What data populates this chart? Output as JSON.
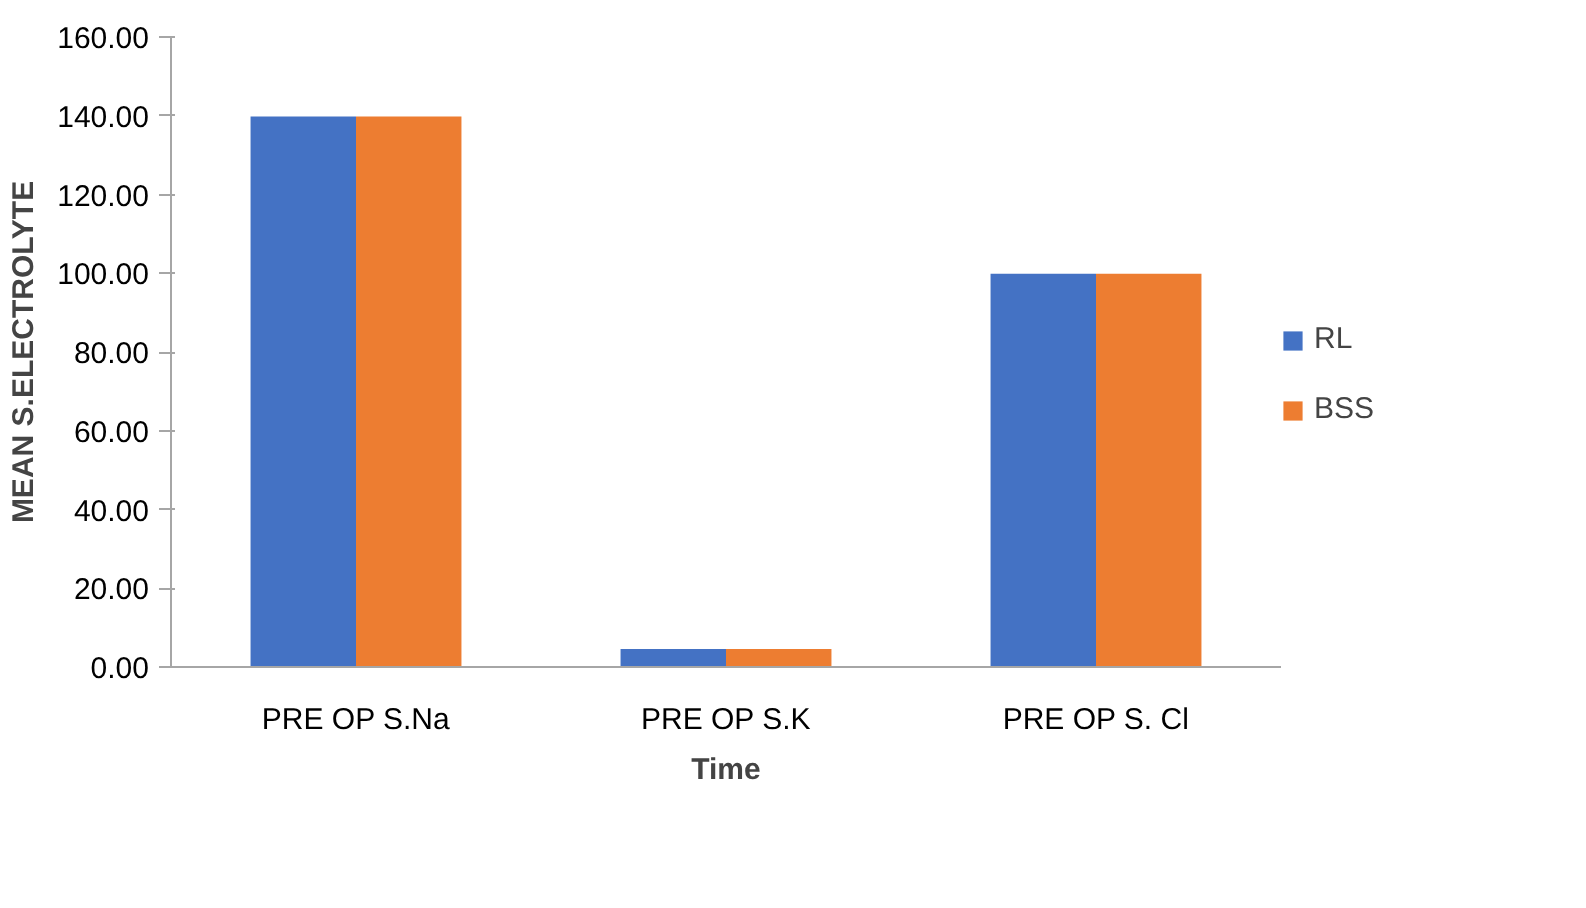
{
  "chart_data": {
    "type": "bar",
    "xlabel": "Time",
    "ylabel": "MEAN S.ELECTROLYTE",
    "categories": [
      "PRE OP S.Na",
      "PRE OP S.K",
      "PRE OP S. Cl"
    ],
    "series": [
      {
        "name": "RL",
        "color": "#4472c4",
        "values": [
          139.8,
          4.6,
          99.9
        ]
      },
      {
        "name": "BSS",
        "color": "#ed7d31",
        "values": [
          139.8,
          4.6,
          99.9
        ]
      }
    ],
    "ylim": [
      0,
      160
    ],
    "yticks": [
      {
        "value": 0,
        "label": "0.00"
      },
      {
        "value": 20,
        "label": "20.00"
      },
      {
        "value": 40,
        "label": "40.00"
      },
      {
        "value": 60,
        "label": "60.00"
      },
      {
        "value": 80,
        "label": "80.00"
      },
      {
        "value": 100,
        "label": "100.00"
      },
      {
        "value": 120,
        "label": "120.00"
      },
      {
        "value": 140,
        "label": "140.00"
      },
      {
        "value": 160,
        "label": "160.00"
      }
    ],
    "grid": false,
    "legend": "right"
  }
}
